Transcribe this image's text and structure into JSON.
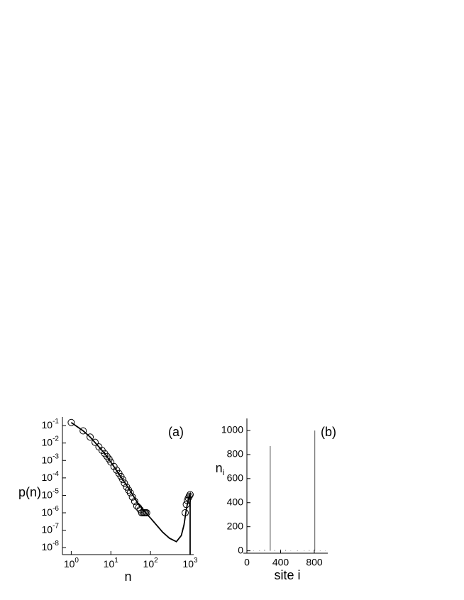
{
  "chart_data": [
    {
      "type": "line",
      "label": "(a)",
      "xlabel": "n",
      "ylabel": "p(n)",
      "xlog": true,
      "ylog": true,
      "color": "#000000",
      "xlim": [
        0.6,
        1230
      ],
      "ylim": [
        4e-09,
        0.31
      ],
      "xticks": [
        {
          "value": 1,
          "label": "10",
          "exponent": "0"
        },
        {
          "value": 10,
          "label": "10",
          "exponent": "1"
        },
        {
          "value": 100,
          "label": "10",
          "exponent": "2"
        },
        {
          "value": 1000,
          "label": "10",
          "exponent": "3"
        }
      ],
      "yticks": [
        {
          "value": 0.1,
          "label": "10",
          "exponent": "-1"
        },
        {
          "value": 0.01,
          "label": "10",
          "exponent": "-2"
        },
        {
          "value": 0.001,
          "label": "10",
          "exponent": "-3"
        },
        {
          "value": 0.0001,
          "label": "10",
          "exponent": "-4"
        },
        {
          "value": 1e-05,
          "label": "10",
          "exponent": "-5"
        },
        {
          "value": 1e-06,
          "label": "10",
          "exponent": "-6"
        },
        {
          "value": 1e-07,
          "label": "10",
          "exponent": "-7"
        },
        {
          "value": 1e-08,
          "label": "10",
          "exponent": "-8"
        }
      ],
      "series": [
        {
          "kind": "line",
          "x": [
            1,
            2,
            3,
            5,
            7,
            10,
            20,
            30,
            50,
            70,
            100,
            200,
            300,
            450,
            600,
            700,
            800,
            900,
            950,
            1000,
            1000
          ],
          "values": [
            0.15,
            0.05,
            0.022,
            0.006,
            0.0025,
            0.0008,
            8e-05,
            2e-05,
            3e-06,
            1.2e-06,
            5e-07,
            8e-08,
            3.5e-08,
            2.2e-08,
            5e-08,
            2e-07,
            1.5e-06,
            6e-06,
            1e-05,
            1.2e-05,
            4e-09
          ]
        },
        {
          "kind": "markers",
          "x": [
            1,
            2,
            3,
            4,
            5,
            6,
            7,
            8,
            9,
            10,
            12,
            14,
            16,
            18,
            20,
            22,
            25,
            28,
            31,
            35,
            40,
            45,
            50,
            55,
            60,
            65,
            70,
            75,
            80,
            750,
            800,
            850,
            900,
            950,
            1000
          ],
          "values": [
            0.15,
            0.05,
            0.022,
            0.011,
            0.006,
            0.0038,
            0.0025,
            0.0017,
            0.0012,
            0.0008,
            0.00045,
            0.00028,
            0.00018,
            0.00012,
            8e-05,
            5e-05,
            3e-05,
            2e-05,
            1.4e-05,
            8e-06,
            4.5e-06,
            2.5e-06,
            2e-06,
            1.5e-06,
            1e-06,
            1e-06,
            1e-06,
            1e-06,
            1e-06,
            1e-06,
            3e-06,
            5e-06,
            7e-06,
            9e-06,
            1.1e-05
          ]
        }
      ]
    },
    {
      "type": "spikes",
      "label": "(b)",
      "xlabel": "site i",
      "ylabel": "n",
      "ylabel_subscript": "i",
      "color": "#555555",
      "xlim": [
        0,
        960
      ],
      "ylim": [
        -20,
        1100
      ],
      "xticks": [
        0,
        400,
        800
      ],
      "yticks": [
        0,
        200,
        400,
        600,
        800,
        1000
      ],
      "x": [
        20,
        80,
        150,
        210,
        277,
        330,
        400,
        460,
        520,
        600,
        680,
        740,
        806,
        870,
        930
      ],
      "values": [
        3,
        2,
        4,
        8,
        870,
        5,
        3,
        6,
        2,
        4,
        3,
        5,
        1000,
        3,
        2
      ]
    }
  ]
}
